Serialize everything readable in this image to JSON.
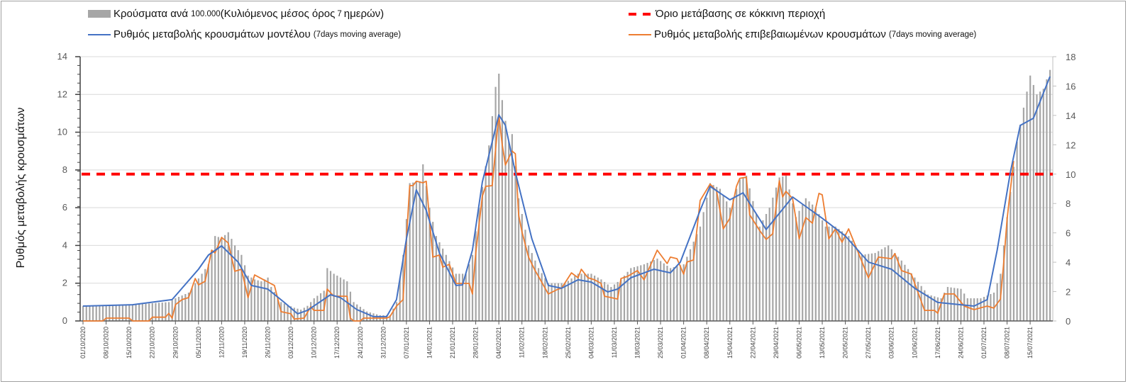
{
  "legend": {
    "bars_label_main": "Κρούσματα ανά ",
    "bars_label_num": "100.000 ",
    "bars_label_mid": "(Κυλιόμενος μέσος όρος ",
    "bars_label_num2": "7 ",
    "bars_label_end": "ημερών)",
    "model_label": "Ρυθμός μεταβολής κρουσμάτων μοντέλου ",
    "model_note": "(7days moving average)",
    "threshold_label": "Όριο μετάβασης σε κόκκινη περιοχή",
    "confirmed_label": "Ρυθμός μεταβολής επιβεβαιωμένων κρουσμάτων ",
    "confirmed_note": "(7days moving average)"
  },
  "colors": {
    "bars": "#a6a6a6",
    "model": "#4472c4",
    "confirmed": "#ed7d31",
    "threshold": "#ff0000",
    "grid": "#d9d9d9"
  },
  "chart_data": {
    "type": "bar+line",
    "ylabel": "Ρυθμός μεταβολής κρουσμάτων",
    "x_start_date": "01/10/2020",
    "x_unit": "days since 01/10/2020",
    "x_range": [
      0,
      293
    ],
    "y_left": {
      "range": [
        0,
        14
      ],
      "ticks": [
        "0",
        "2",
        "4",
        "6",
        "8",
        "10",
        "12",
        "14"
      ]
    },
    "y_right": {
      "range": [
        0,
        18
      ],
      "ticks": [
        "0",
        "2",
        "4",
        "6",
        "8",
        "10",
        "12",
        "14",
        "16",
        "18"
      ]
    },
    "grid": true,
    "x_tick_labels": [
      "01/10/2020",
      "08/10/2020",
      "15/10/2020",
      "22/10/2020",
      "29/10/2020",
      "05/11/2020",
      "12/11/2020",
      "19/11/2020",
      "26/11/2020",
      "03/12/2020",
      "10/12/2020",
      "17/12/2020",
      "24/12/2020",
      "31/12/2020",
      "07/01/2021",
      "14/01/2021",
      "21/01/2021",
      "28/01/2021",
      "04/02/2021",
      "11/02/2021",
      "18/02/2021",
      "25/02/2021",
      "04/03/2021",
      "11/03/2021",
      "18/03/2021",
      "25/03/2021",
      "01/04/2021",
      "08/04/2021",
      "15/04/2021",
      "22/04/2021",
      "29/04/2021",
      "06/05/2021",
      "13/05/2021",
      "20/05/2021",
      "27/05/2021",
      "03/06/2021",
      "10/06/2021",
      "17/06/2021",
      "24/06/2021",
      "01/07/2021",
      "08/07/2021",
      "15/07/2021"
    ],
    "x_tick_step_days": 7,
    "threshold": {
      "name": "Όριο μετάβασης σε κόκκινη περιοχή",
      "value_right_axis": 10
    },
    "bars": {
      "name": "Κρούσματα ανά 100.000 (Κυλιόμενος μέσος όρος 7 ημερών)",
      "axis": "left",
      "points": [
        [
          0,
          0.8
        ],
        [
          14,
          0.85
        ],
        [
          26,
          1.0
        ],
        [
          28,
          1.2
        ],
        [
          32,
          1.5
        ],
        [
          36,
          2.5
        ],
        [
          38,
          3.0
        ],
        [
          40,
          4.5
        ],
        [
          42,
          4.4
        ],
        [
          44,
          4.7
        ],
        [
          46,
          4.0
        ],
        [
          48,
          3.5
        ],
        [
          50,
          2.4
        ],
        [
          52,
          2.2
        ],
        [
          54,
          2.1
        ],
        [
          56,
          2.3
        ],
        [
          57,
          1.8
        ],
        [
          60,
          1.0
        ],
        [
          64,
          0.7
        ],
        [
          66,
          0.6
        ],
        [
          68,
          0.8
        ],
        [
          70,
          1.2
        ],
        [
          73,
          1.6
        ],
        [
          74,
          2.8
        ],
        [
          76,
          2.5
        ],
        [
          78,
          2.3
        ],
        [
          80,
          2.1
        ],
        [
          82,
          1.0
        ],
        [
          86,
          0.5
        ],
        [
          90,
          0.3
        ],
        [
          93,
          0.3
        ],
        [
          95,
          1.0
        ],
        [
          97,
          3.5
        ],
        [
          99,
          7.3
        ],
        [
          102,
          7.4
        ],
        [
          103,
          8.3
        ],
        [
          105,
          6.0
        ],
        [
          107,
          4.5
        ],
        [
          110,
          3.5
        ],
        [
          113,
          2.5
        ],
        [
          116,
          2.5
        ],
        [
          118,
          3.5
        ],
        [
          120,
          6.0
        ],
        [
          123,
          9.3
        ],
        [
          125,
          12.4
        ],
        [
          126,
          13.1
        ],
        [
          127,
          11.7
        ],
        [
          129,
          9.5
        ],
        [
          130,
          9.9
        ],
        [
          132,
          6.5
        ],
        [
          135,
          4.0
        ],
        [
          138,
          2.8
        ],
        [
          141,
          2.0
        ],
        [
          146,
          2.0
        ],
        [
          150,
          2.5
        ],
        [
          154,
          2.5
        ],
        [
          157,
          2.2
        ],
        [
          160,
          1.8
        ],
        [
          163,
          2.2
        ],
        [
          166,
          2.8
        ],
        [
          170,
          3.0
        ],
        [
          174,
          3.3
        ],
        [
          178,
          2.8
        ],
        [
          182,
          3.0
        ],
        [
          187,
          5.0
        ],
        [
          190,
          7.3
        ],
        [
          193,
          7.0
        ],
        [
          196,
          6.0
        ],
        [
          199,
          7.5
        ],
        [
          201,
          7.7
        ],
        [
          205,
          5.0
        ],
        [
          208,
          6.0
        ],
        [
          211,
          7.6
        ],
        [
          213,
          7.7
        ],
        [
          216,
          5.5
        ],
        [
          219,
          6.5
        ],
        [
          222,
          6.0
        ],
        [
          225,
          5.0
        ],
        [
          228,
          5.0
        ],
        [
          232,
          4.5
        ],
        [
          236,
          3.5
        ],
        [
          240,
          3.6
        ],
        [
          244,
          4.0
        ],
        [
          248,
          3.2
        ],
        [
          252,
          2.3
        ],
        [
          256,
          1.4
        ],
        [
          260,
          1.2
        ],
        [
          262,
          1.8
        ],
        [
          266,
          1.7
        ],
        [
          268,
          1.2
        ],
        [
          272,
          1.2
        ],
        [
          276,
          1.5
        ],
        [
          278,
          2.5
        ],
        [
          280,
          5.5
        ],
        [
          283,
          9.5
        ],
        [
          285,
          11.3
        ],
        [
          287,
          13.0
        ],
        [
          289,
          12.0
        ],
        [
          291,
          12.3
        ],
        [
          293,
          13.3
        ]
      ]
    },
    "series": [
      {
        "name": "Ρυθμός μεταβολής κρουσμάτων μοντέλου (7days moving average)",
        "axis": "left",
        "points": [
          [
            0,
            0.79
          ],
          [
            15,
            0.86
          ],
          [
            27,
            1.13
          ],
          [
            35,
            2.74
          ],
          [
            38,
            3.49
          ],
          [
            42,
            3.98
          ],
          [
            47,
            3.12
          ],
          [
            51,
            1.88
          ],
          [
            56,
            1.69
          ],
          [
            61,
            0.98
          ],
          [
            65,
            0.38
          ],
          [
            68,
            0.56
          ],
          [
            75,
            1.39
          ],
          [
            78,
            1.24
          ],
          [
            83,
            0.6
          ],
          [
            88,
            0.23
          ],
          [
            92,
            0.23
          ],
          [
            95,
            1.13
          ],
          [
            98,
            4.35
          ],
          [
            101,
            6.94
          ],
          [
            104,
            5.86
          ],
          [
            108,
            3.6
          ],
          [
            113,
            1.88
          ],
          [
            115,
            1.91
          ],
          [
            118,
            3.75
          ],
          [
            121,
            7.36
          ],
          [
            126,
            10.92
          ],
          [
            128,
            10.36
          ],
          [
            131,
            7.88
          ],
          [
            136,
            4.35
          ],
          [
            141,
            1.88
          ],
          [
            145,
            1.73
          ],
          [
            150,
            2.18
          ],
          [
            154,
            2.06
          ],
          [
            159,
            1.54
          ],
          [
            162,
            1.69
          ],
          [
            166,
            2.29
          ],
          [
            173,
            2.74
          ],
          [
            178,
            2.55
          ],
          [
            181,
            3.12
          ],
          [
            187,
            5.86
          ],
          [
            190,
            7.13
          ],
          [
            196,
            6.42
          ],
          [
            200,
            6.79
          ],
          [
            207,
            4.84
          ],
          [
            215,
            6.57
          ],
          [
            224,
            5.44
          ],
          [
            231,
            4.5
          ],
          [
            238,
            3.12
          ],
          [
            245,
            2.74
          ],
          [
            252,
            1.73
          ],
          [
            259,
            0.98
          ],
          [
            270,
            0.79
          ],
          [
            274,
            1.13
          ],
          [
            277,
            3.75
          ],
          [
            281,
            7.88
          ],
          [
            284,
            10.36
          ],
          [
            288,
            10.74
          ],
          [
            293,
            12.95
          ]
        ]
      },
      {
        "name": "Ρυθμός μεταβολής επιβεβαιωμένων κρουσμάτων (7days moving average)",
        "axis": "left",
        "points": [
          [
            0,
            0
          ],
          [
            6,
            0
          ],
          [
            7,
            0.15
          ],
          [
            14,
            0.15
          ],
          [
            15,
            0
          ],
          [
            20,
            0
          ],
          [
            21,
            0.2
          ],
          [
            25,
            0.2
          ],
          [
            26,
            0.4
          ],
          [
            27,
            0.15
          ],
          [
            28,
            0.86
          ],
          [
            30,
            1.13
          ],
          [
            32,
            1.24
          ],
          [
            34,
            2.25
          ],
          [
            35,
            1.91
          ],
          [
            37,
            2.1
          ],
          [
            39,
            3.75
          ],
          [
            40,
            3.6
          ],
          [
            42,
            4.43
          ],
          [
            44,
            4.13
          ],
          [
            46,
            2.63
          ],
          [
            48,
            2.74
          ],
          [
            50,
            1.24
          ],
          [
            52,
            2.44
          ],
          [
            54,
            2.25
          ],
          [
            58,
            1.88
          ],
          [
            60,
            0.49
          ],
          [
            63,
            0.38
          ],
          [
            64,
            0.1
          ],
          [
            67,
            0.15
          ],
          [
            69,
            0.75
          ],
          [
            70,
            0.56
          ],
          [
            73,
            0.56
          ],
          [
            74,
            1.69
          ],
          [
            76,
            1.31
          ],
          [
            80,
            1.31
          ],
          [
            81,
            0.15
          ],
          [
            82,
            0
          ],
          [
            84,
            0
          ],
          [
            85,
            0.15
          ],
          [
            92,
            0.15
          ],
          [
            93,
            0.23
          ],
          [
            95,
            0.79
          ],
          [
            97,
            1.13
          ],
          [
            98,
            4.35
          ],
          [
            99,
            7.17
          ],
          [
            100,
            7.17
          ],
          [
            101,
            7.4
          ],
          [
            103,
            7.32
          ],
          [
            104,
            7.4
          ],
          [
            106,
            3.38
          ],
          [
            108,
            3.49
          ],
          [
            109,
            2.85
          ],
          [
            111,
            3.0
          ],
          [
            113,
            1.99
          ],
          [
            117,
            1.99
          ],
          [
            118,
            1.43
          ],
          [
            119,
            3.6
          ],
          [
            121,
            6.61
          ],
          [
            122,
            7.13
          ],
          [
            124,
            7.17
          ],
          [
            126,
            10.92
          ],
          [
            127,
            9.38
          ],
          [
            128,
            8.26
          ],
          [
            130,
            9.0
          ],
          [
            131,
            8.86
          ],
          [
            132,
            5.63
          ],
          [
            133,
            4.73
          ],
          [
            135,
            3.38
          ],
          [
            137,
            2.67
          ],
          [
            138,
            2.36
          ],
          [
            141,
            1.43
          ],
          [
            144,
            1.69
          ],
          [
            145,
            1.73
          ],
          [
            148,
            2.55
          ],
          [
            150,
            2.29
          ],
          [
            151,
            2.74
          ],
          [
            153,
            2.29
          ],
          [
            155,
            2.18
          ],
          [
            157,
            1.99
          ],
          [
            158,
            1.31
          ],
          [
            160,
            1.24
          ],
          [
            162,
            1.16
          ],
          [
            163,
            2.25
          ],
          [
            165,
            2.36
          ],
          [
            168,
            2.67
          ],
          [
            170,
            2.18
          ],
          [
            174,
            3.75
          ],
          [
            177,
            3.04
          ],
          [
            178,
            3.38
          ],
          [
            180,
            3.3
          ],
          [
            182,
            2.48
          ],
          [
            183,
            3.12
          ],
          [
            185,
            3.23
          ],
          [
            187,
            6.38
          ],
          [
            190,
            7.25
          ],
          [
            192,
            6.87
          ],
          [
            194,
            4.88
          ],
          [
            196,
            5.44
          ],
          [
            198,
            7.13
          ],
          [
            199,
            7.55
          ],
          [
            201,
            7.62
          ],
          [
            202,
            5.63
          ],
          [
            205,
            4.8
          ],
          [
            207,
            4.32
          ],
          [
            209,
            4.62
          ],
          [
            211,
            7.43
          ],
          [
            212,
            6.57
          ],
          [
            213,
            6.87
          ],
          [
            215,
            6.49
          ],
          [
            217,
            4.35
          ],
          [
            219,
            5.48
          ],
          [
            221,
            5.18
          ],
          [
            223,
            6.76
          ],
          [
            224,
            6.68
          ],
          [
            226,
            4.35
          ],
          [
            228,
            4.88
          ],
          [
            230,
            4.17
          ],
          [
            232,
            4.88
          ],
          [
            238,
            2.29
          ],
          [
            241,
            3.38
          ],
          [
            245,
            3.3
          ],
          [
            246,
            3.57
          ],
          [
            248,
            2.67
          ],
          [
            251,
            2.48
          ],
          [
            255,
            0.56
          ],
          [
            258,
            0.56
          ],
          [
            259,
            0.41
          ],
          [
            261,
            1.43
          ],
          [
            264,
            1.43
          ],
          [
            267,
            0.79
          ],
          [
            270,
            0.6
          ],
          [
            274,
            0.79
          ],
          [
            276,
            0.68
          ],
          [
            278,
            1.16
          ],
          [
            279,
            3.12
          ],
          [
            280,
            5.37
          ],
          [
            282,
            8.48
          ]
        ]
      }
    ]
  }
}
